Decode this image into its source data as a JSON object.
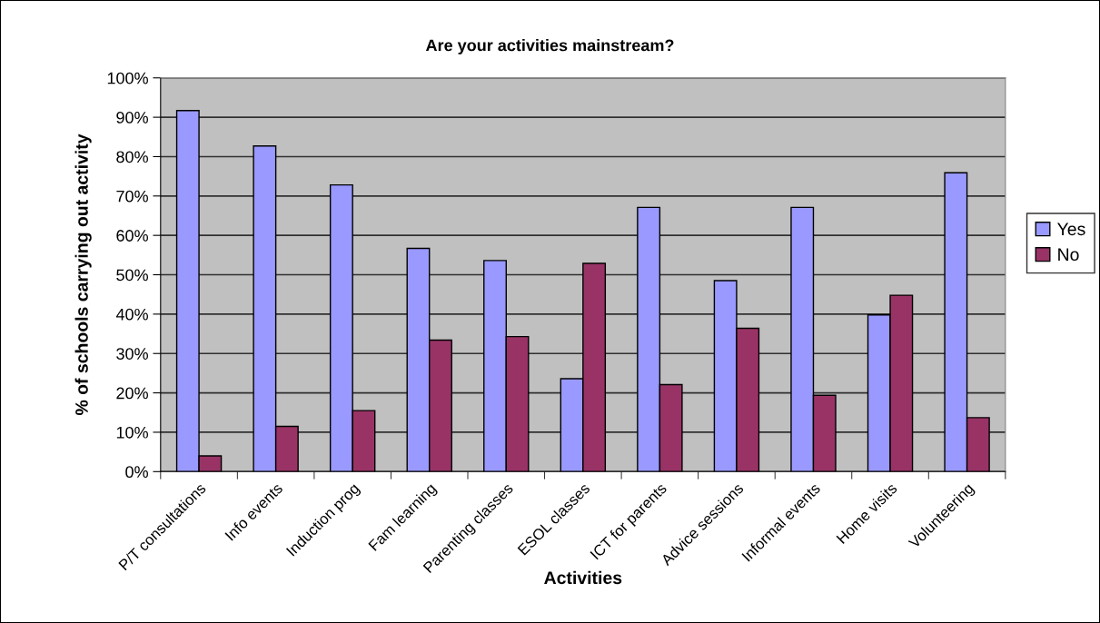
{
  "chart_data": {
    "type": "bar",
    "title": "Are your activities mainstream?",
    "xlabel": "Activities",
    "ylabel": "% of schools carrying out activity",
    "categories": [
      "P/T consultations",
      "Info events",
      "Induction prog",
      "Fam learning",
      "Parenting classes",
      "ESOL classes",
      "ICT for parents",
      "Advice sessions",
      "Informal events",
      "Home visits",
      "Volunteering"
    ],
    "series": [
      {
        "name": "Yes",
        "color": "#9999ff",
        "values": [
          91.7,
          82.7,
          72.8,
          56.7,
          53.6,
          23.6,
          67.1,
          48.5,
          67.1,
          39.8,
          75.9
        ]
      },
      {
        "name": "No",
        "color": "#993366",
        "values": [
          4.0,
          11.5,
          15.5,
          33.4,
          34.3,
          52.9,
          22.1,
          36.4,
          19.4,
          44.8,
          13.7
        ]
      }
    ],
    "ylim": [
      0,
      100
    ],
    "yticks": [
      {
        "value": 0,
        "label": "0%"
      },
      {
        "value": 10,
        "label": "10%"
      },
      {
        "value": 20,
        "label": "20%"
      },
      {
        "value": 30,
        "label": "30%"
      },
      {
        "value": 40,
        "label": "40%"
      },
      {
        "value": 50,
        "label": "50%"
      },
      {
        "value": 60,
        "label": "60%"
      },
      {
        "value": 70,
        "label": "70%"
      },
      {
        "value": 80,
        "label": "80%"
      },
      {
        "value": 90,
        "label": "90%"
      },
      {
        "value": 100,
        "label": "100%"
      }
    ],
    "grid": "y",
    "legend": "right"
  }
}
